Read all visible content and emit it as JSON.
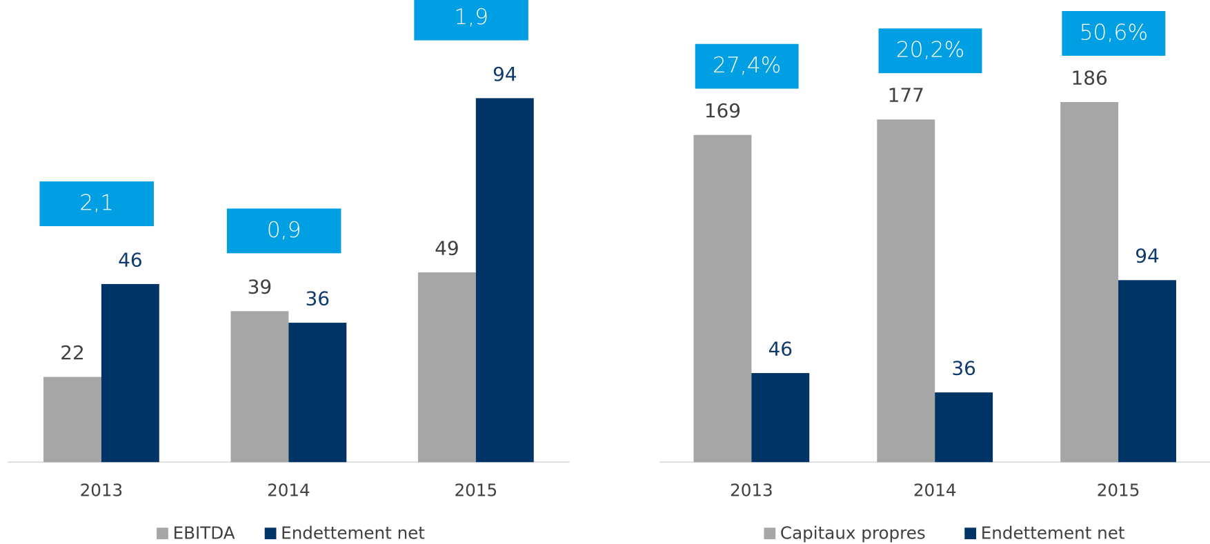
{
  "chart_data": [
    {
      "type": "bar",
      "categories": [
        "2013",
        "2014",
        "2015"
      ],
      "series": [
        {
          "name": "EBITDA",
          "color": "#a6a6a6",
          "values": [
            22,
            39,
            49
          ]
        },
        {
          "name": "Endettement net",
          "color": "#003366",
          "values": [
            46,
            36,
            94
          ]
        }
      ],
      "annotations": [
        "2,1",
        "0,9",
        "1,9"
      ],
      "annotation_color": "#009fe3"
    },
    {
      "type": "bar",
      "categories": [
        "2013",
        "2014",
        "2015"
      ],
      "series": [
        {
          "name": "Capitaux propres",
          "color": "#a6a6a6",
          "values": [
            169,
            177,
            186
          ]
        },
        {
          "name": "Endettement net",
          "color": "#003366",
          "values": [
            46,
            36,
            94
          ]
        }
      ],
      "annotations": [
        "27,4%",
        "20,2%",
        "50,6%"
      ],
      "annotation_color": "#009fe3"
    }
  ]
}
